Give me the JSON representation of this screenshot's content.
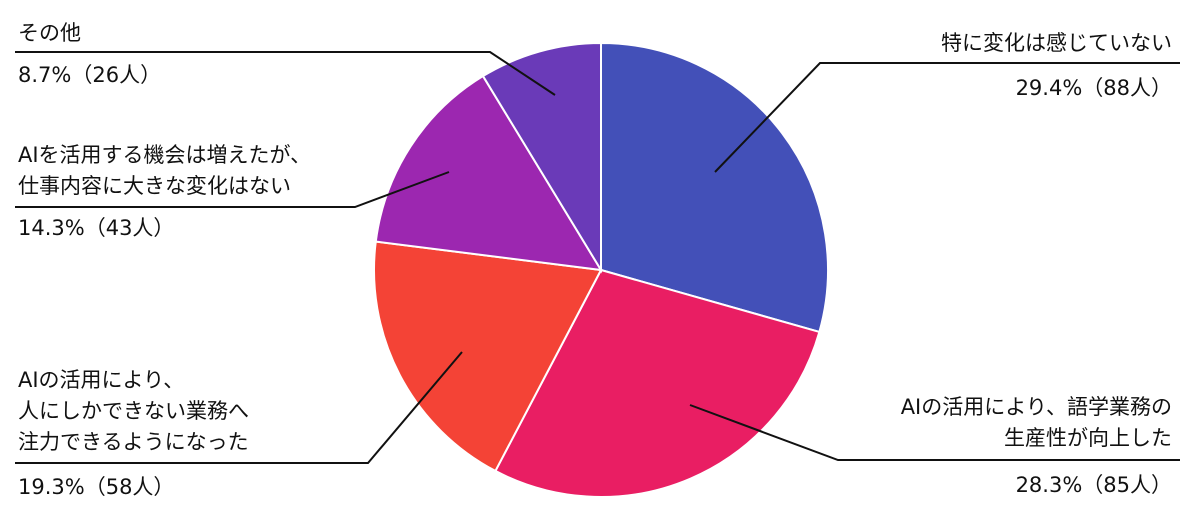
{
  "chart_data": {
    "type": "pie",
    "categories": [
      "特に変化は感じていない",
      "AIの活用により、語学業務の\n生産性が向上した",
      "AIの活用により、\n人にしかできない業務へ\n注力できるようになった",
      "AIを活用する機会は増えたが、\n仕事内容に大きな変化はない",
      "その他"
    ],
    "values": [
      29.4,
      28.3,
      19.3,
      14.3,
      8.7
    ],
    "value_labels": [
      "29.4%（88人）",
      "28.3%（85人）",
      "19.3%（58人）",
      "14.3%（43人）",
      "8.7%（26人）"
    ],
    "colors": [
      "#4350b8",
      "#e91e63",
      "#f44336",
      "#9c27b0",
      "#6a3ab8"
    ]
  }
}
